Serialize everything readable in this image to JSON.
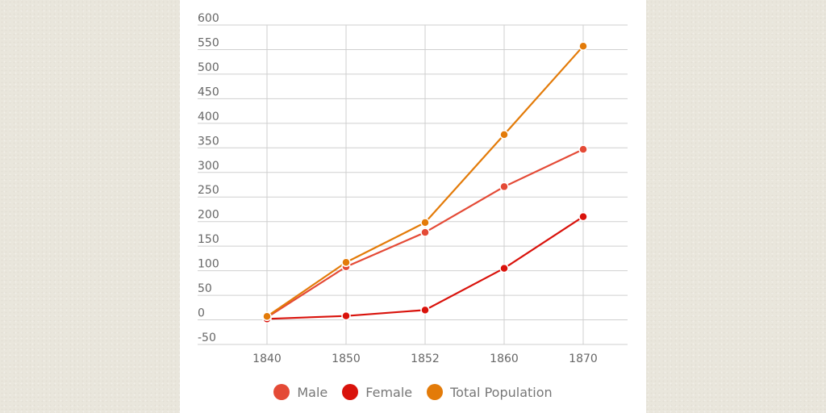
{
  "chart_data": {
    "type": "line",
    "x": [
      "1840",
      "1850",
      "1852",
      "1860",
      "1870"
    ],
    "ylim": [
      -50,
      600
    ],
    "yticks": [
      -50,
      0,
      50,
      100,
      150,
      200,
      250,
      300,
      350,
      400,
      450,
      500,
      550,
      600
    ],
    "grid": true,
    "legend_position": "bottom-center",
    "series": [
      {
        "name": "Male",
        "color": "#e44a36",
        "values": [
          5,
          108,
          178,
          271,
          347
        ]
      },
      {
        "name": "Female",
        "color": "#d9120b",
        "values": [
          2,
          8,
          20,
          105,
          210
        ]
      },
      {
        "name": "Total Population",
        "color": "#e37b09",
        "values": [
          7,
          117,
          198,
          377,
          557
        ]
      }
    ]
  }
}
